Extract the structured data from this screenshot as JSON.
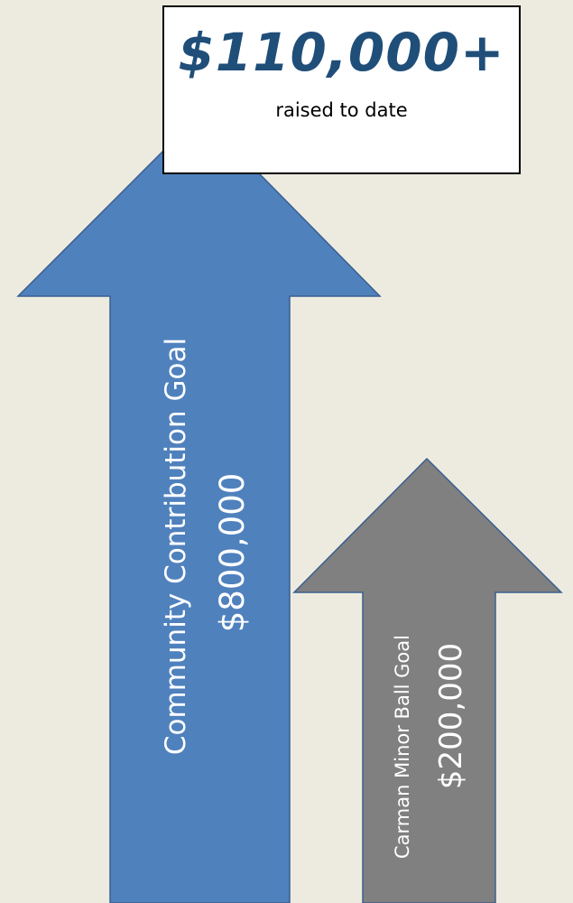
{
  "callout": {
    "amount": "$110,000+",
    "caption": "raised to date"
  },
  "community_goal": {
    "label": "Community Contribution Goal",
    "amount": "$800,000"
  },
  "ball_goal": {
    "label": "Carman Minor Ball  Goal",
    "amount": "$200,000"
  },
  "colors": {
    "background": "#edebe0",
    "community_arrow": "#4f81bd",
    "ball_arrow": "#808080",
    "arrow_outline": "#3a5f8f",
    "callout_amount": "#1f4e79"
  }
}
